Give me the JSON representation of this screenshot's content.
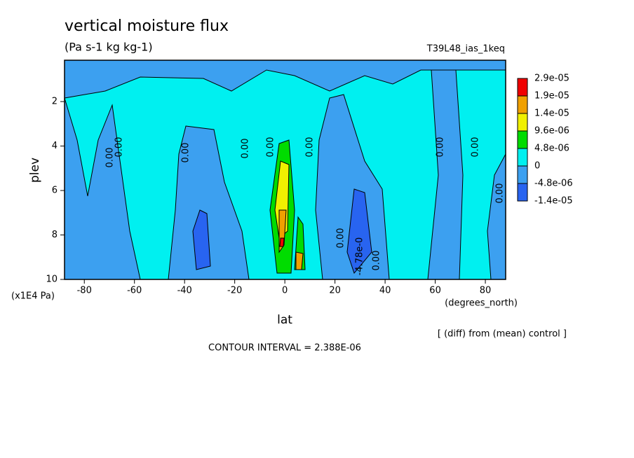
{
  "chart_data": {
    "type": "contour",
    "title": "vertical moisture flux",
    "subtitle": "(Pa s-1 kg kg-1)",
    "experiment": "T39L48_ias_1keq",
    "xlabel": "lat",
    "ylabel": "plev",
    "x_unit": "(degrees_north)",
    "y_unit": "(x1E4 Pa)",
    "note": "[ (diff) from (mean) control ]",
    "contour_interval": "CONTOUR INTERVAL = 2.388E-06",
    "xlim": [
      -87.9,
      88.1
    ],
    "xticks": [
      -80,
      -60,
      -40,
      -20,
      0,
      20,
      40,
      60,
      80
    ],
    "ylim": [
      10,
      0.14
    ],
    "yticks": [
      2,
      4,
      6,
      8,
      10
    ],
    "background": "#00f0f0",
    "levels": [
      {
        "value": 2.9e-05,
        "label": "2.9e-05"
      },
      {
        "value": 1.9e-05,
        "label": "1.9e-05"
      },
      {
        "value": 1.4e-05,
        "label": "1.4e-05"
      },
      {
        "value": 9.6e-06,
        "label": "9.6e-06"
      },
      {
        "value": 4.8e-06,
        "label": "4.8e-06"
      },
      0,
      {
        "value": -4.8e-06,
        "label": "-4.8e-06"
      },
      {
        "value": -1.4e-05,
        "label": "-1.4e-05"
      }
    ],
    "colors": [
      "#f00000",
      "#f0a000",
      "#f0f000",
      "#00dc00",
      "#00f0f0",
      "#3ca0f0",
      "#2864f0"
    ],
    "contour_labels": [
      "0.00",
      "0.00",
      "0.00",
      "0.00",
      "0.00",
      "0.00",
      "0.00",
      "0.00",
      "0.00",
      "0.00",
      "0.00",
      "-4.78e-0"
    ]
  }
}
